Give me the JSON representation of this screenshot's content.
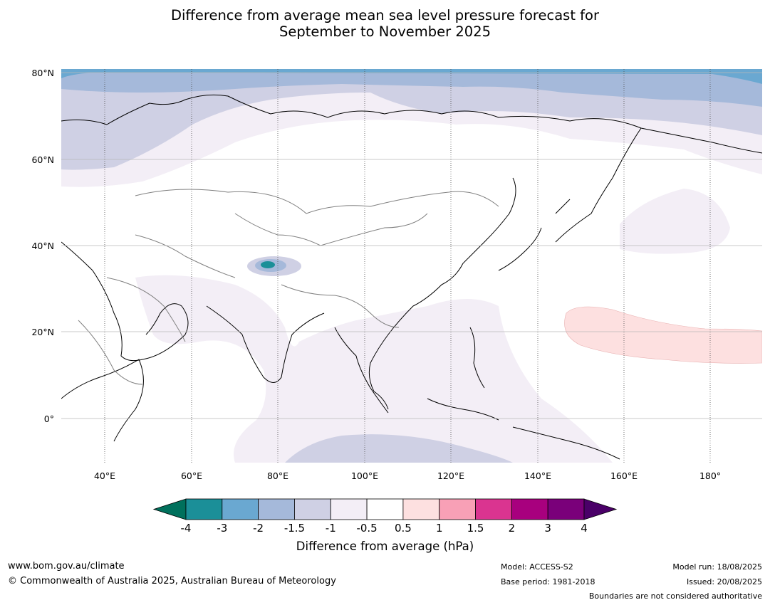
{
  "title_line1": "Difference from average mean sea level pressure forecast for",
  "title_line2": "September to November 2025",
  "lat_labels": [
    "80°N",
    "60°N",
    "40°N",
    "20°N",
    "0°"
  ],
  "lon_labels": [
    "40°E",
    "60°E",
    "80°E",
    "100°E",
    "120°E",
    "140°E",
    "160°E",
    "180°"
  ],
  "colorbar": {
    "label": "Difference from average (hPa)",
    "ticks": [
      "-4",
      "-3",
      "-2",
      "-1.5",
      "-1",
      "-0.5",
      "0.5",
      "1",
      "1.5",
      "2",
      "3",
      "4"
    ],
    "colors": [
      "#1b8f98",
      "#6aa8d1",
      "#a5b9da",
      "#cfd0e4",
      "#f3eef6",
      "#ffffff",
      "#fde0e0",
      "#f8a0b6",
      "#da3490",
      "#a8007e",
      "#7a007a"
    ],
    "under_color": "#00705c",
    "over_color": "#4a0068"
  },
  "footer": {
    "url": "www.bom.gov.au/climate",
    "copyright": "© Commonwealth of Australia 2025, Australian Bureau of Meteorology",
    "model": "Model: ACCESS-S2",
    "base_period": "Base period: 1981-2018",
    "model_run": "Model run: 18/08/2025",
    "issued": "Issued: 20/08/2025",
    "boundaries": "Boundaries are not considered authoritative"
  }
}
